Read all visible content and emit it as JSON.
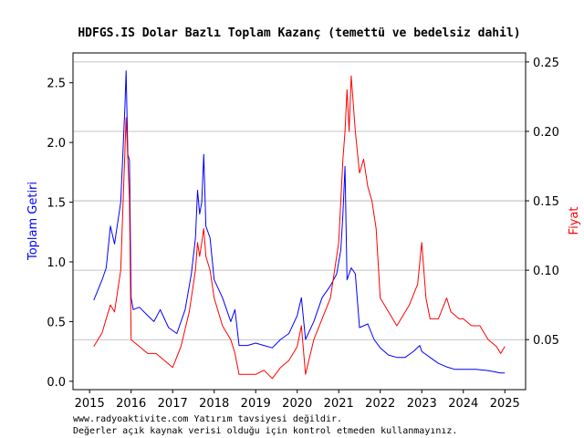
{
  "chart_data": {
    "type": "line",
    "title": "HDFGS.IS Dolar Bazlı Toplam Kazanç (temettü ve bedelsiz dahil)",
    "ylabel_left": "Toplam Getiri",
    "ylabel_right": "Fiyat",
    "left_axis_color": "#0000ff",
    "right_axis_color": "#ff0000",
    "xlim": [
      2014.6,
      2025.5
    ],
    "ylim_left": [
      -0.07,
      2.75
    ],
    "ylim_right": [
      0.014,
      0.2565
    ],
    "xticks": [
      "2015",
      "2016",
      "2017",
      "2018",
      "2019",
      "2020",
      "2021",
      "2022",
      "2023",
      "2024",
      "2025"
    ],
    "yticks_left": [
      "0.0",
      "0.5",
      "1.0",
      "1.5",
      "2.0",
      "2.5"
    ],
    "yticks_right": [
      "0.05",
      "0.10",
      "0.15",
      "0.20",
      "0.25"
    ],
    "grid": "horizontal (right axis)",
    "series": [
      {
        "axis": "left",
        "color": "#0000ff",
        "x": [
          2015.1,
          2015.3,
          2015.4,
          2015.5,
          2015.6,
          2015.75,
          2015.85,
          2015.88,
          2015.92,
          2015.96,
          2016.0,
          2016.05,
          2016.2,
          2016.4,
          2016.55,
          2016.7,
          2016.9,
          2017.1,
          2017.3,
          2017.45,
          2017.55,
          2017.6,
          2017.65,
          2017.7,
          2017.75,
          2017.8,
          2017.9,
          2018.0,
          2018.2,
          2018.4,
          2018.5,
          2018.6,
          2018.8,
          2019.0,
          2019.2,
          2019.4,
          2019.6,
          2019.8,
          2020.0,
          2020.1,
          2020.2,
          2020.4,
          2020.6,
          2020.8,
          2020.95,
          2021.05,
          2021.1,
          2021.15,
          2021.2,
          2021.3,
          2021.4,
          2021.5,
          2021.7,
          2021.85,
          2022.0,
          2022.2,
          2022.4,
          2022.6,
          2022.8,
          2022.95,
          2023.0,
          2023.2,
          2023.4,
          2023.6,
          2023.8,
          2024.0,
          2024.3,
          2024.6,
          2024.9,
          2025.0
        ],
        "y": [
          0.68,
          0.85,
          0.95,
          1.3,
          1.15,
          1.5,
          2.3,
          2.6,
          1.9,
          1.85,
          0.7,
          0.6,
          0.62,
          0.55,
          0.5,
          0.6,
          0.45,
          0.4,
          0.6,
          0.9,
          1.2,
          1.6,
          1.4,
          1.5,
          1.9,
          1.3,
          1.2,
          0.85,
          0.7,
          0.5,
          0.6,
          0.3,
          0.3,
          0.32,
          0.3,
          0.28,
          0.35,
          0.4,
          0.55,
          0.7,
          0.35,
          0.5,
          0.7,
          0.8,
          0.9,
          1.1,
          1.4,
          1.8,
          0.85,
          0.95,
          0.9,
          0.45,
          0.48,
          0.35,
          0.28,
          0.22,
          0.2,
          0.2,
          0.25,
          0.3,
          0.25,
          0.2,
          0.15,
          0.12,
          0.1,
          0.1,
          0.1,
          0.09,
          0.07,
          0.07
        ]
      },
      {
        "axis": "right",
        "color": "#ff0000",
        "x": [
          2015.1,
          2015.3,
          2015.4,
          2015.5,
          2015.6,
          2015.75,
          2015.82,
          2015.88,
          2015.92,
          2015.96,
          2016.0,
          2016.2,
          2016.4,
          2016.6,
          2016.8,
          2017.0,
          2017.2,
          2017.4,
          2017.55,
          2017.6,
          2017.65,
          2017.7,
          2017.75,
          2017.8,
          2017.9,
          2018.0,
          2018.2,
          2018.4,
          2018.5,
          2018.6,
          2018.8,
          2019.0,
          2019.2,
          2019.4,
          2019.6,
          2019.8,
          2020.0,
          2020.1,
          2020.2,
          2020.4,
          2020.6,
          2020.8,
          2020.9,
          2021.0,
          2021.05,
          2021.1,
          2021.15,
          2021.2,
          2021.25,
          2021.3,
          2021.4,
          2021.5,
          2021.6,
          2021.7,
          2021.8,
          2021.9,
          2022.0,
          2022.2,
          2022.4,
          2022.5,
          2022.7,
          2022.9,
          2023.0,
          2023.1,
          2023.2,
          2023.4,
          2023.6,
          2023.7,
          2023.9,
          2024.0,
          2024.2,
          2024.4,
          2024.6,
          2024.8,
          2024.9,
          2025.0
        ],
        "y": [
          0.045,
          0.055,
          0.065,
          0.075,
          0.07,
          0.1,
          0.16,
          0.21,
          0.18,
          0.15,
          0.05,
          0.045,
          0.04,
          0.04,
          0.035,
          0.03,
          0.045,
          0.07,
          0.1,
          0.12,
          0.11,
          0.12,
          0.13,
          0.11,
          0.1,
          0.08,
          0.06,
          0.05,
          0.04,
          0.025,
          0.025,
          0.025,
          0.028,
          0.022,
          0.03,
          0.035,
          0.045,
          0.06,
          0.025,
          0.05,
          0.065,
          0.08,
          0.1,
          0.12,
          0.15,
          0.18,
          0.2,
          0.23,
          0.2,
          0.24,
          0.2,
          0.17,
          0.18,
          0.16,
          0.15,
          0.13,
          0.08,
          0.07,
          0.06,
          0.065,
          0.075,
          0.09,
          0.12,
          0.08,
          0.065,
          0.065,
          0.08,
          0.07,
          0.065,
          0.065,
          0.06,
          0.06,
          0.05,
          0.045,
          0.04,
          0.045
        ]
      }
    ]
  },
  "footer": {
    "line1": "www.radyoaktivite.com Yatırım tavsiyesi değildir.",
    "line2": "Değerler açık kaynak verisi olduğu için kontrol etmeden kullanmayınız."
  }
}
